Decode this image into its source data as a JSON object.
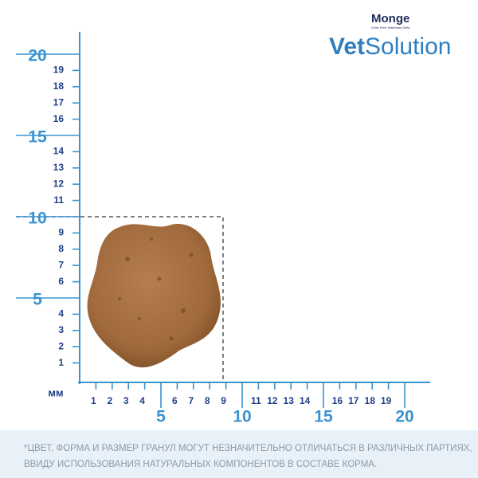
{
  "brand": {
    "name": "Monge",
    "tagline": "Grain Free Veterinary Diets",
    "product_bold": "Vet",
    "product_light": "Solution"
  },
  "ruler": {
    "unit": "мм",
    "y_labels": [
      1,
      2,
      3,
      4,
      5,
      6,
      7,
      8,
      9,
      10,
      11,
      12,
      13,
      14,
      15,
      16,
      17,
      18,
      19,
      20
    ],
    "x_labels": [
      1,
      2,
      3,
      4,
      5,
      6,
      7,
      8,
      9,
      10,
      11,
      12,
      13,
      14,
      15,
      16,
      17,
      18,
      19,
      20
    ]
  },
  "note": [
    "*ЦВЕТ, ФОРМА И РАЗМЕР ГРАНУЛ МОГУТ НЕЗНАЧИТЕЛЬНО ОТЛИЧАТЬСЯ В РАЗЛИЧНЫХ ПАРТИЯХ,",
    "ВВИДУ ИСПОЛЬЗОВАНИЯ НАТУРАЛЬНЫХ КОМПОНЕНТОВ В СОСТАВЕ КОРМА."
  ]
}
